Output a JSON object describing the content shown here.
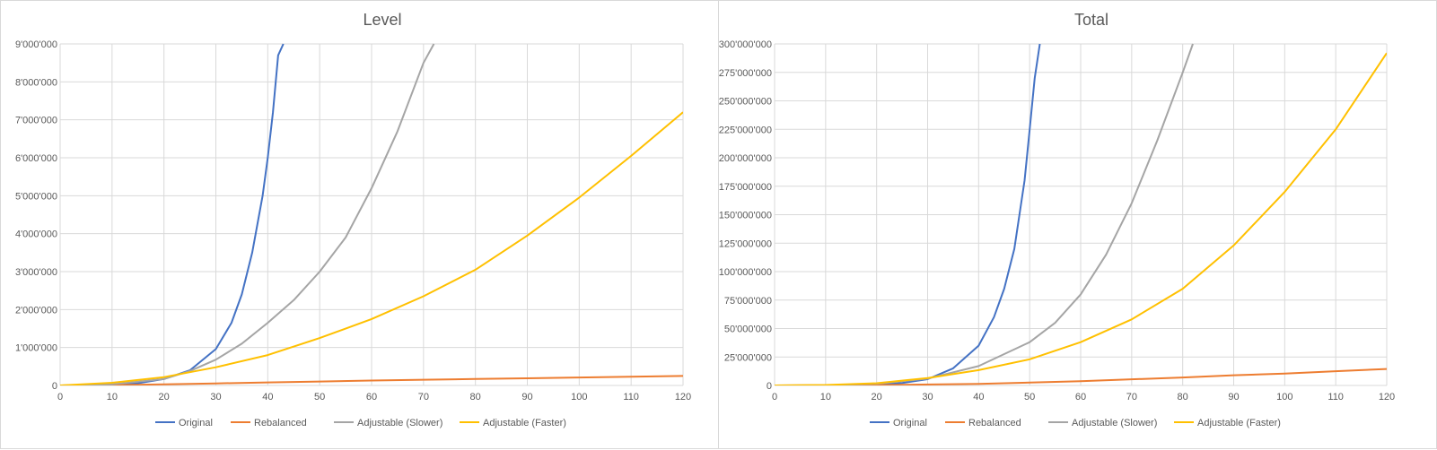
{
  "colors": {
    "Original": "#4472C4",
    "Rebalanced": "#ED7D31",
    "Adjustable (Slower)": "#A5A5A5",
    "Adjustable (Faster)": "#FFC000",
    "grid": "#d9d9d9",
    "text": "#595959"
  },
  "chart_data": [
    {
      "type": "line",
      "title": "Level",
      "xlabel": "",
      "ylabel": "",
      "xlim": [
        0,
        120
      ],
      "ylim": [
        0,
        9000000
      ],
      "grid": true,
      "legend": "bottom",
      "x_ticks": [
        "0",
        "10",
        "20",
        "30",
        "40",
        "50",
        "60",
        "70",
        "80",
        "90",
        "100",
        "110",
        "120"
      ],
      "y_ticks": [
        "0",
        "1'000'000",
        "2'000'000",
        "3'000'000",
        "4'000'000",
        "5'000'000",
        "6'000'000",
        "7'000'000",
        "8'000'000",
        "9'000'000"
      ],
      "series": [
        {
          "name": "Original",
          "x": [
            0,
            5,
            10,
            15,
            20,
            25,
            30,
            33,
            35,
            37,
            39,
            40,
            41,
            42,
            43
          ],
          "y": [
            0,
            3000,
            20000,
            60000,
            170000,
            400000,
            960000,
            1650000,
            2400000,
            3500000,
            5000000,
            6000000,
            7200000,
            8700000,
            9000000
          ]
        },
        {
          "name": "Rebalanced",
          "x": [
            0,
            10,
            20,
            30,
            40,
            50,
            60,
            70,
            80,
            90,
            100,
            110,
            120
          ],
          "y": [
            0,
            10000,
            30000,
            55000,
            80000,
            105000,
            130000,
            150000,
            170000,
            190000,
            210000,
            230000,
            250000
          ]
        },
        {
          "name": "Adjustable (Slower)",
          "x": [
            0,
            10,
            20,
            25,
            30,
            35,
            40,
            45,
            50,
            55,
            60,
            65,
            70,
            72
          ],
          "y": [
            0,
            30000,
            170000,
            380000,
            680000,
            1100000,
            1650000,
            2250000,
            3000000,
            3900000,
            5200000,
            6700000,
            8500000,
            9000000
          ]
        },
        {
          "name": "Adjustable (Faster)",
          "x": [
            0,
            10,
            20,
            30,
            40,
            50,
            60,
            70,
            80,
            90,
            100,
            110,
            120
          ],
          "y": [
            0,
            70000,
            220000,
            480000,
            800000,
            1250000,
            1750000,
            2350000,
            3050000,
            3950000,
            4950000,
            6050000,
            7200000
          ]
        }
      ]
    },
    {
      "type": "line",
      "title": "Total",
      "xlabel": "",
      "ylabel": "",
      "xlim": [
        0,
        120
      ],
      "ylim": [
        0,
        300000000
      ],
      "grid": true,
      "legend": "bottom",
      "x_ticks": [
        "0",
        "10",
        "20",
        "30",
        "40",
        "50",
        "60",
        "70",
        "80",
        "90",
        "100",
        "110",
        "120"
      ],
      "y_ticks": [
        "0",
        "25'000'000",
        "50'000'000",
        "75'000'000",
        "100'000'000",
        "125'000'000",
        "150'000'000",
        "175'000'000",
        "200'000'000",
        "225'000'000",
        "250'000'000",
        "275'000'000",
        "300'000'000"
      ],
      "series": [
        {
          "name": "Original",
          "x": [
            0,
            10,
            20,
            25,
            30,
            35,
            40,
            43,
            45,
            47,
            48,
            49,
            50,
            51,
            52
          ],
          "y": [
            0,
            50000,
            700000,
            2200000,
            5500000,
            15000000,
            35000000,
            60000000,
            85000000,
            120000000,
            150000000,
            180000000,
            225000000,
            270000000,
            300000000
          ]
        },
        {
          "name": "Rebalanced",
          "x": [
            0,
            20,
            40,
            60,
            80,
            90,
            100,
            110,
            120
          ],
          "y": [
            0,
            300000,
            1300000,
            3800000,
            7000000,
            9000000,
            10500000,
            12500000,
            14500000
          ]
        },
        {
          "name": "Adjustable (Slower)",
          "x": [
            0,
            10,
            20,
            30,
            40,
            50,
            55,
            60,
            65,
            70,
            75,
            80,
            82
          ],
          "y": [
            0,
            200000,
            1500000,
            6000000,
            17000000,
            38000000,
            55000000,
            80000000,
            115000000,
            160000000,
            215000000,
            275000000,
            300000000
          ]
        },
        {
          "name": "Adjustable (Faster)",
          "x": [
            0,
            10,
            20,
            30,
            40,
            50,
            60,
            70,
            80,
            90,
            100,
            110,
            120
          ],
          "y": [
            0,
            400000,
            2000000,
            6500000,
            13500000,
            23000000,
            38000000,
            58000000,
            85000000,
            123000000,
            170000000,
            225000000,
            292000000
          ]
        }
      ]
    }
  ]
}
